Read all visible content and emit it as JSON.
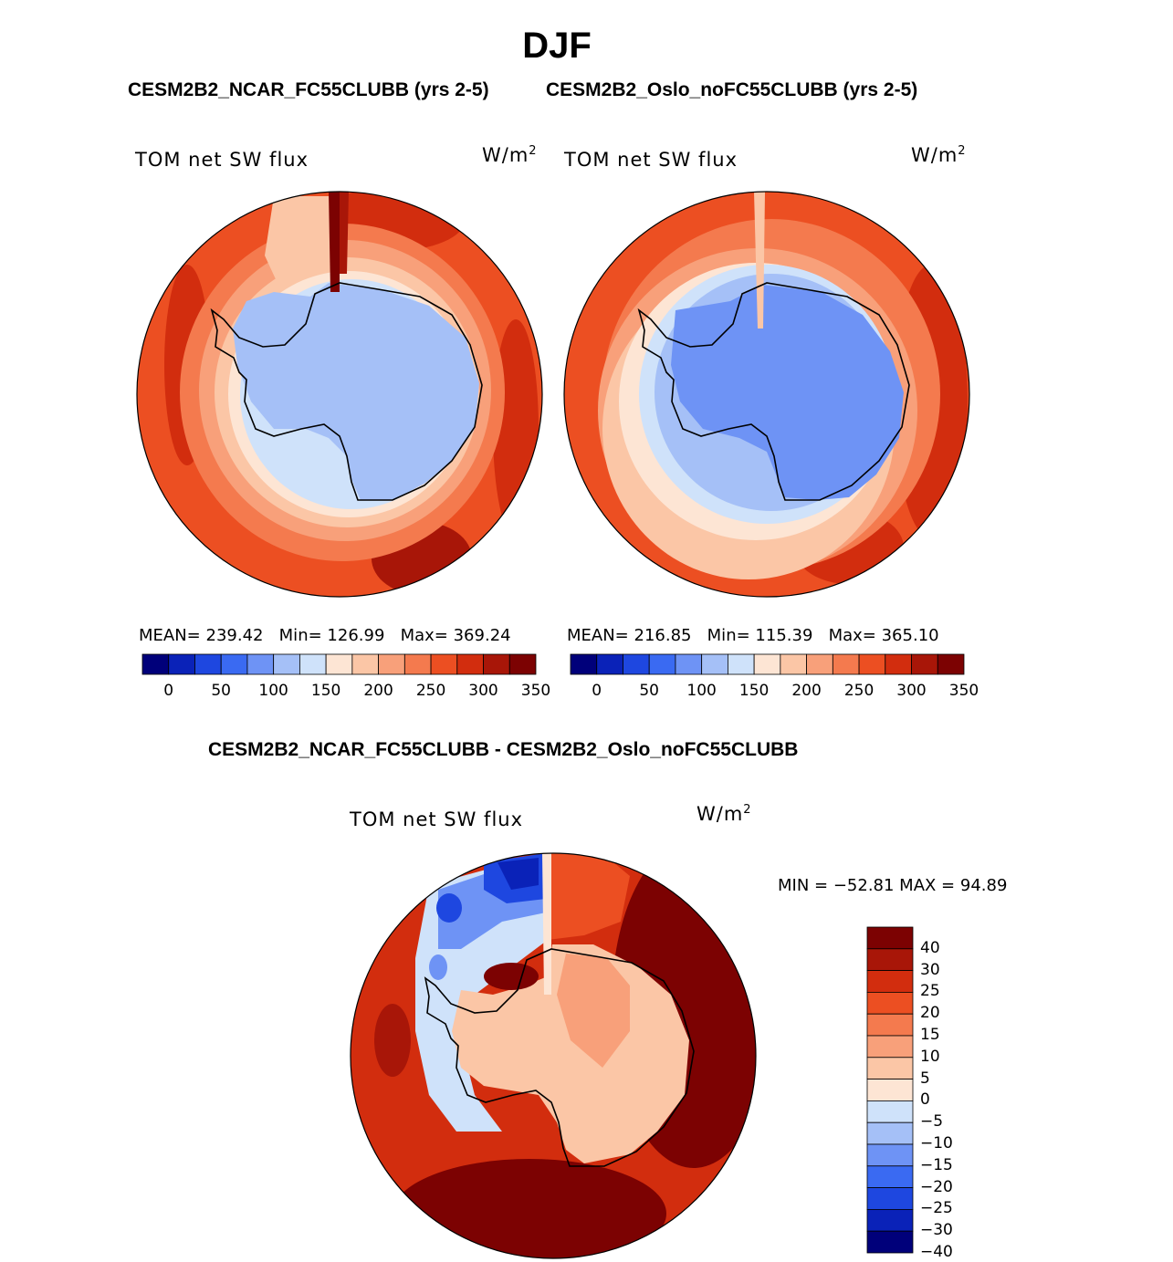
{
  "figure": {
    "title": "DJF",
    "subtitle_left": "CESM2B2_NCAR_FC55CLUBB (yrs 2-5)",
    "subtitle_right": "CESM2B2_Oslo_noFC55CLUBB (yrs 2-5)",
    "diff_title": "CESM2B2_NCAR_FC55CLUBB - CESM2B2_Oslo_noFC55CLUBB"
  },
  "panels": [
    {
      "variable": "TOM net SW flux",
      "units_base": "W/m",
      "units_exp": "2",
      "stats": {
        "mean_label": "MEAN=",
        "mean": "239.42",
        "min_label": "Min=",
        "min": "126.99",
        "max_label": "Max=",
        "max": "369.24"
      }
    },
    {
      "variable": "TOM net SW flux",
      "units_base": "W/m",
      "units_exp": "2",
      "stats": {
        "mean_label": "MEAN=",
        "mean": "216.85",
        "min_label": "Min=",
        "min": "115.39",
        "max_label": "Max=",
        "max": "365.10"
      }
    }
  ],
  "diff_panel": {
    "variable": "TOM net SW flux",
    "units_base": "W/m",
    "units_exp": "2",
    "min_max_text": "MIN = −52.81 MAX =  94.89"
  },
  "colorbar_abs": {
    "colors": [
      "#00007a",
      "#0a22b8",
      "#1e47e0",
      "#3a6af2",
      "#6e93f5",
      "#a5c0f7",
      "#cfe2fa",
      "#fde5d4",
      "#fbc6a6",
      "#f8a07a",
      "#f47a4e",
      "#ec4f22",
      "#d22d0e",
      "#a81608",
      "#7c0202"
    ],
    "tick_labels": [
      "0",
      "50",
      "100",
      "150",
      "200",
      "250",
      "300",
      "350"
    ]
  },
  "colorbar_diff": {
    "colors": [
      "#00007a",
      "#0a22b8",
      "#1e47e0",
      "#3a6af2",
      "#6e93f5",
      "#a5c0f7",
      "#cfe2fa",
      "#fde5d4",
      "#fbc6a6",
      "#f8a07a",
      "#f47a4e",
      "#ec4f22",
      "#d22d0e",
      "#a81608",
      "#7c0202"
    ],
    "tick_labels": [
      "−40",
      "−30",
      "−25",
      "−20",
      "−15",
      "−10",
      "−5",
      "0",
      "5",
      "10",
      "15",
      "20",
      "25",
      "30",
      "40"
    ]
  }
}
